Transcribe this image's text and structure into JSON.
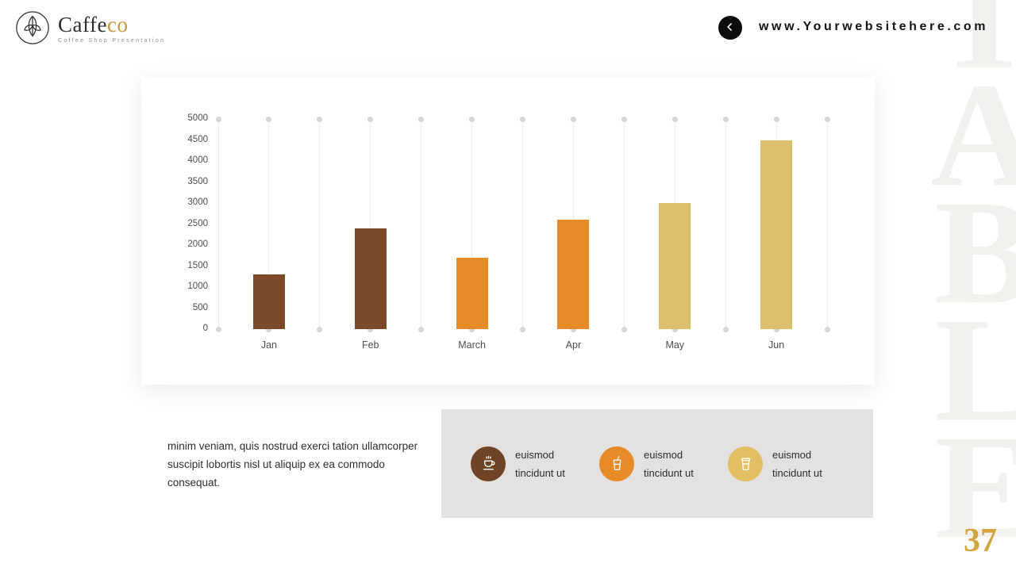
{
  "header": {
    "brand_prefix": "Caffe",
    "brand_suffix": "co",
    "tagline": "Coffee Shop Presentation",
    "website": "www.Yourwebsitehere.com"
  },
  "watermark": "TABLE",
  "chart_data": {
    "type": "bar",
    "categories": [
      "Jan",
      "Feb",
      "March",
      "Apr",
      "May",
      "Jun"
    ],
    "values": [
      1300,
      2400,
      1700,
      2600,
      3000,
      4500
    ],
    "bar_colors": [
      "#7b4a2b",
      "#7b4a2b",
      "#e78b28",
      "#e78b28",
      "#ddbe6a",
      "#ddbe6a"
    ],
    "ylim": [
      0,
      5000
    ],
    "ytick_step": 500,
    "title": "",
    "xlabel": "",
    "ylabel": "",
    "grid": "vertical-lines-with-end-dots",
    "legend": "none"
  },
  "paragraph": "minim veniam, quis nostrud exerci tation ullamcorper suscipit lobortis nisl ut aliquip ex ea commodo  consequat.",
  "features": [
    {
      "icon": "espresso-cup-icon",
      "circle_color": "#6f4426",
      "label": "euismod tincidunt ut"
    },
    {
      "icon": "cold-drink-cup-icon",
      "circle_color": "#e78b28",
      "label": "euismod tincidunt ut"
    },
    {
      "icon": "takeaway-cup-icon",
      "circle_color": "#e3bf63",
      "label": "euismod tincidunt ut"
    }
  ],
  "page_number": "37"
}
